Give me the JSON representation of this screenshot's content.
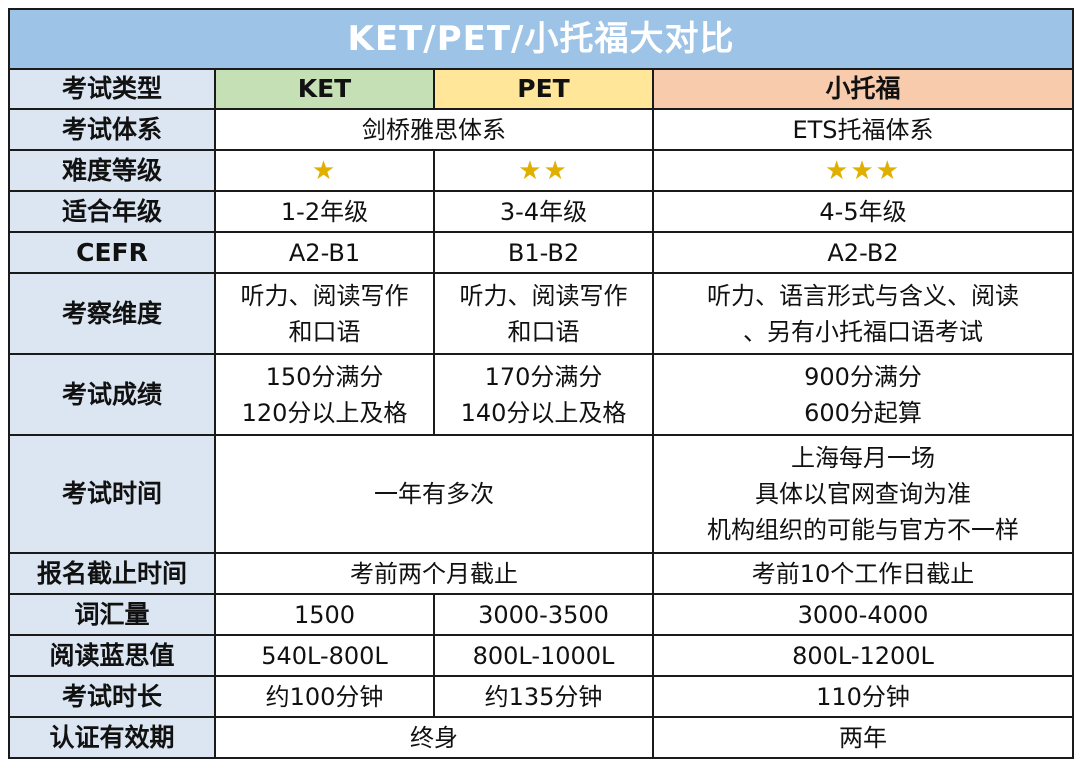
{
  "title": "KET/PET/小托福大对比",
  "header": {
    "label": "考试类型",
    "ket": "KET",
    "pet": "PET",
    "toefl": "小托福"
  },
  "rows": {
    "system": {
      "label": "考试体系",
      "ket_pet": "剑桥雅思体系",
      "toefl": "ETS托福体系"
    },
    "difficulty": {
      "label": "难度等级",
      "ket": "★",
      "pet": "★★",
      "toefl": "★★★",
      "star_color": "#e0b000"
    },
    "grade": {
      "label": "适合年级",
      "ket": "1-2年级",
      "pet": "3-4年级",
      "toefl": "4-5年级"
    },
    "cefr": {
      "label": "CEFR",
      "ket": "A2-B1",
      "pet": "B1-B2",
      "toefl": "A2-B2"
    },
    "dimensions": {
      "label": "考察维度",
      "ket": [
        "听力、阅读写作",
        "和口语"
      ],
      "pet": [
        "听力、阅读写作",
        "和口语"
      ],
      "toefl": [
        "听力、语言形式与含义、阅读",
        "、另有小托福口语考试"
      ]
    },
    "score": {
      "label": "考试成绩",
      "ket": [
        "150分满分",
        "120分以上及格"
      ],
      "pet": [
        "170分满分",
        "140分以上及格"
      ],
      "toefl": [
        "900分满分",
        "600分起算"
      ]
    },
    "time": {
      "label": "考试时间",
      "ket_pet": "一年有多次",
      "toefl": [
        "上海每月一场",
        "具体以官网查询为准",
        "机构组织的可能与官方不一样"
      ]
    },
    "deadline": {
      "label": "报名截止时间",
      "ket_pet": "考前两个月截止",
      "toefl": "考前10个工作日截止"
    },
    "vocab": {
      "label": "词汇量",
      "ket": "1500",
      "pet": "3000-3500",
      "toefl": "3000-4000"
    },
    "lexile": {
      "label": "阅读蓝思值",
      "ket": "540L-800L",
      "pet": "800L-1000L",
      "toefl": "800L-1200L"
    },
    "duration": {
      "label": "考试时长",
      "ket": "约100分钟",
      "pet": "约135分钟",
      "toefl": "110分钟"
    },
    "validity": {
      "label": "认证有效期",
      "ket_pet": "终身",
      "toefl": "两年"
    }
  },
  "colors": {
    "title_bg": "#9dc3e6",
    "label_bg": "#dce6f2",
    "ket_bg": "#c5e0b4",
    "pet_bg": "#ffe699",
    "toefl_bg": "#f8cbad"
  }
}
